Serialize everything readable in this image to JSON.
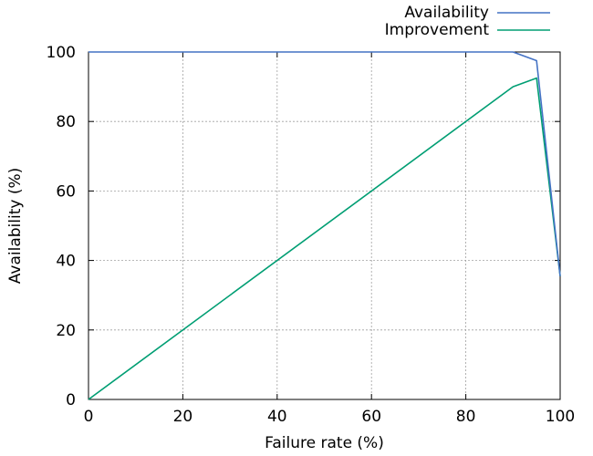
{
  "chart_data": {
    "type": "line",
    "title": "",
    "xlabel": "Failure rate (%)",
    "ylabel": "Availability (%)",
    "xlim": [
      0,
      100
    ],
    "ylim": [
      0,
      100
    ],
    "xticks": [
      0,
      20,
      40,
      60,
      80,
      100
    ],
    "yticks": [
      0,
      20,
      40,
      60,
      80,
      100
    ],
    "grid": true,
    "legend_position": "top-right",
    "series": [
      {
        "name": "Availability",
        "color": "#4472c4",
        "points": [
          [
            0,
            100
          ],
          [
            90,
            100
          ],
          [
            95,
            97.5
          ],
          [
            100,
            35.5
          ]
        ]
      },
      {
        "name": "Improvement",
        "color": "#009e73",
        "points": [
          [
            0,
            0
          ],
          [
            90,
            90
          ],
          [
            95,
            92.5
          ],
          [
            100,
            35.5
          ]
        ]
      }
    ]
  }
}
